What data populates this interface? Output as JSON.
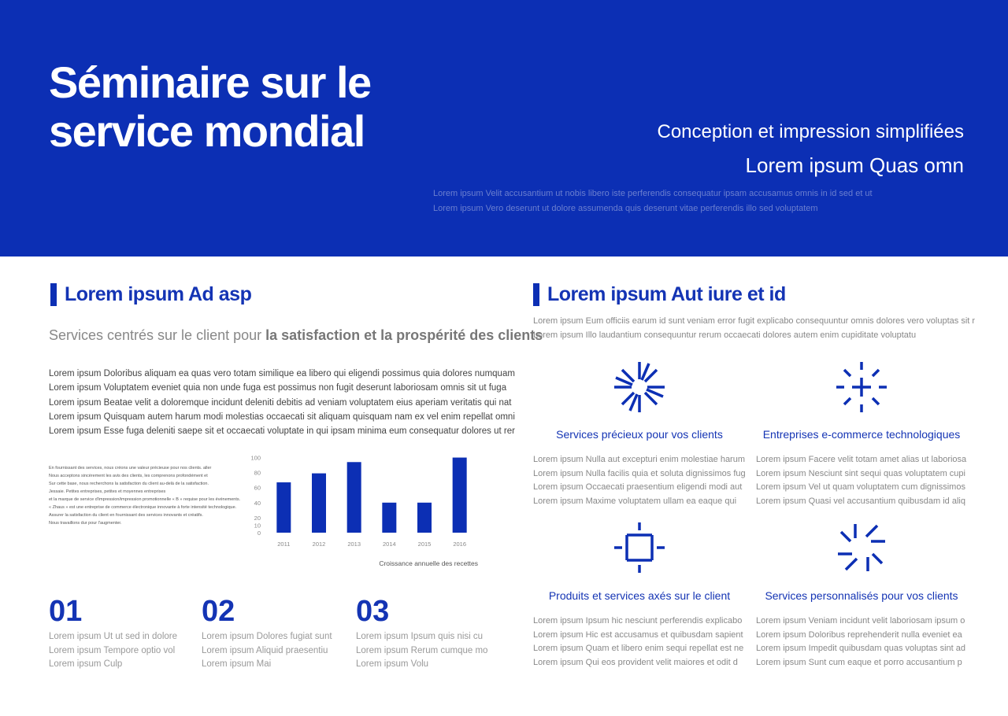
{
  "header": {
    "title_lines": [
      "Séminaire sur le",
      "service mondial"
    ],
    "subtitle": "Conception et impression simplifiées",
    "tagline": "Lorem ipsum Quas omn",
    "description": [
      "Lorem ipsum Velit accusantium ut nobis libero iste perferendis consequatur ipsam accusamus omnis in id sed et ut",
      "Lorem ipsum Vero deserunt ut dolore assumenda quis deserunt vitae perferendis illo sed voluptatem"
    ]
  },
  "left": {
    "heading": "Lorem ipsum Ad asp",
    "lead": {
      "light": "Services centrés sur le client pour ",
      "bold": "la satisfaction et la prospérité des clients"
    },
    "paragraph": [
      "Lorem ipsum Doloribus aliquam ea quas vero totam similique ea libero qui eligendi possimus quia dolores numquam",
      "Lorem ipsum Voluptatem eveniet quia non unde fuga est possimus non fugit deserunt laboriosam omnis sit ut fuga",
      "Lorem ipsum Beatae velit a doloremque incidunt deleniti debitis ad veniam voluptatem eius aperiam veritatis qui nat",
      "Lorem ipsum Quisquam autem harum modi molestias occaecati sit aliquam quisquam nam ex vel enim repellat omni",
      "Lorem ipsum Esse fuga deleniti saepe sit et occaecati voluptate in qui ipsam minima eum consequatur dolores ut rer"
    ],
    "note": [
      "En fournissant des services, nous créons une valeur précieuse pour nos clients. aller",
      "Nous acceptons sincèrement les avis des clients, les comprenons profondément et",
      "Sur cette base, nous recherchons la satisfaction du client au-delà de la satisfaction.",
      "Jessaie. Petites entreprises, petites et moyennes entreprises",
      "et la marque de service d'impression/impression promotionnelle « B » requise pour les événements.",
      "« Zhaus » est une entreprise de commerce électronique innovante à forte intensité technologique.",
      "Assurer la satisfaction du client en fournissant des services innovants et créatifs.",
      "Nous travaillons dur pour l'augmenter."
    ],
    "numbers": [
      {
        "number": "01",
        "lines": [
          "Lorem ipsum Ut ut sed in dolore",
          "Lorem ipsum Tempore optio vol",
          "Lorem ipsum Culp"
        ]
      },
      {
        "number": "02",
        "lines": [
          "Lorem ipsum Dolores fugiat sunt",
          "Lorem ipsum Aliquid praesentiu",
          "Lorem ipsum Mai"
        ]
      },
      {
        "number": "03",
        "lines": [
          "Lorem ipsum Ipsum quis nisi cu",
          "Lorem ipsum Rerum cumque mo",
          "Lorem ipsum Volu"
        ]
      }
    ]
  },
  "chart_data": {
    "type": "bar",
    "caption": "Croissance annuelle des recettes",
    "categories": [
      "2011",
      "2012",
      "2013",
      "2014",
      "2015",
      "2016"
    ],
    "values": [
      67,
      79,
      94,
      40,
      40,
      100
    ],
    "color": "#0c2fb4",
    "ylim": [
      0,
      110
    ],
    "yticks": [
      0,
      10,
      20,
      40,
      60,
      80,
      100
    ]
  },
  "right": {
    "heading": "Lorem ipsum Aut iure et id",
    "intro": [
      "Lorem ipsum Eum officiis earum id sunt veniam error fugit explicabo consequuntur omnis dolores vero voluptas sit r",
      "Lorem ipsum Illo laudantium consequuntur rerum occaecati dolores autem enim cupiditate voluptatu"
    ],
    "features": [
      {
        "title": "Services précieux pour vos clients",
        "lines": [
          "Lorem ipsum Nulla aut excepturi enim molestiae harum",
          "Lorem ipsum Nulla facilis quia et soluta dignissimos fug",
          "Lorem ipsum Occaecati praesentium eligendi modi aut",
          "Lorem ipsum Maxime voluptatem ullam ea eaque qui"
        ]
      },
      {
        "title": "Entreprises e-commerce technologiques",
        "lines": [
          "Lorem ipsum Facere velit totam amet alias ut laboriosa",
          "Lorem ipsum Nesciunt sint sequi quas voluptatem cupi",
          "Lorem ipsum Vel ut quam voluptatem cum dignissimos",
          "Lorem ipsum Quasi vel accusantium quibusdam id aliq"
        ]
      },
      {
        "title": "Produits et services axés sur le client",
        "lines": [
          "Lorem ipsum Ipsum hic nesciunt perferendis explicabo",
          "Lorem ipsum Hic est accusamus et quibusdam sapient",
          "Lorem ipsum Quam et libero enim sequi repellat est ne",
          "Lorem ipsum Qui eos provident velit maiores et odit d"
        ]
      },
      {
        "title": "Services personnalisés pour vos clients",
        "lines": [
          "Lorem ipsum Veniam incidunt velit laboriosam ipsum o",
          "Lorem ipsum Doloribus reprehenderit nulla eveniet ea",
          "Lorem ipsum Impedit quibusdam quas voluptas sint ad",
          "Lorem ipsum Sunt cum eaque et porro accusantium p"
        ]
      }
    ]
  }
}
